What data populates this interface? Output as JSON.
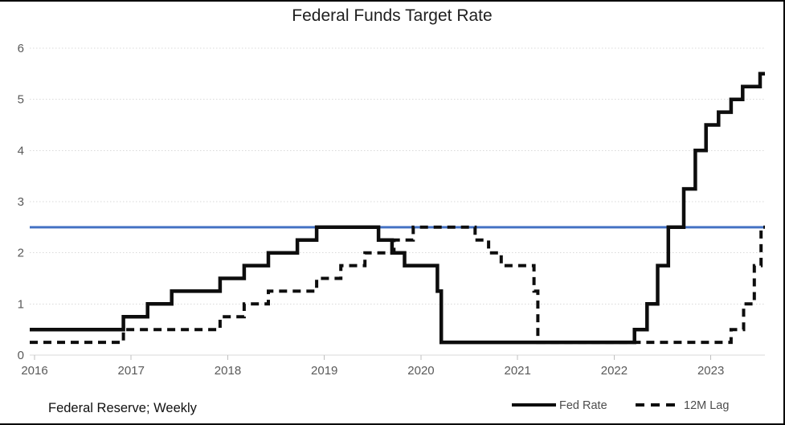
{
  "title": "Federal Funds Target Rate",
  "caption": "Federal Reserve; Weekly",
  "legend": [
    {
      "label": "Fed Rate",
      "style": "solid"
    },
    {
      "label": "12M Lag",
      "style": "dashed"
    }
  ],
  "colors": {
    "series_line": "#0d0d0d",
    "reference_line": "#4472C4",
    "gridline": "#d9d9d9",
    "axis_line": "#d9d9d9",
    "tick_mark": "#bfbfbf",
    "axis_text": "#595959",
    "title_text": "#1f1f1f"
  },
  "chart_data": {
    "type": "line",
    "title": "Federal Funds Target Rate",
    "xlabel": "",
    "ylabel": "",
    "x_tick_years": [
      2016,
      2017,
      2018,
      2019,
      2020,
      2021,
      2022,
      2023
    ],
    "x_tick_labels": [
      "2016",
      "2017",
      "2018",
      "2019",
      "2020",
      "2021",
      "2022",
      "2023"
    ],
    "y_ticks": [
      0,
      1,
      2,
      3,
      4,
      5,
      6
    ],
    "y_tick_labels": [
      "0",
      "1",
      "2",
      "3",
      "4",
      "5",
      "6"
    ],
    "ylim": [
      0,
      6
    ],
    "xlim_years": [
      2015.95,
      2023.56
    ],
    "grid": "horizontal-dotted",
    "legend_position": "bottom-right",
    "reference_line_y": 2.5,
    "series": [
      {
        "name": "Fed Rate",
        "style": "solid",
        "step_points_year_value": [
          [
            2015.95,
            0.5
          ],
          [
            2016.92,
            0.75
          ],
          [
            2017.17,
            1.0
          ],
          [
            2017.42,
            1.25
          ],
          [
            2017.92,
            1.5
          ],
          [
            2018.17,
            1.75
          ],
          [
            2018.42,
            2.0
          ],
          [
            2018.72,
            2.25
          ],
          [
            2018.92,
            2.5
          ],
          [
            2019.56,
            2.25
          ],
          [
            2019.7,
            2.0
          ],
          [
            2019.83,
            1.75
          ],
          [
            2020.17,
            1.25
          ],
          [
            2020.21,
            0.25
          ],
          [
            2022.21,
            0.5
          ],
          [
            2022.34,
            1.0
          ],
          [
            2022.45,
            1.75
          ],
          [
            2022.56,
            2.5
          ],
          [
            2022.72,
            3.25
          ],
          [
            2022.84,
            4.0
          ],
          [
            2022.95,
            4.5
          ],
          [
            2023.08,
            4.75
          ],
          [
            2023.21,
            5.0
          ],
          [
            2023.33,
            5.25
          ],
          [
            2023.51,
            5.5
          ]
        ]
      },
      {
        "name": "12M Lag",
        "style": "dashed",
        "step_points_year_value": [
          [
            2015.95,
            0.25
          ],
          [
            2016.92,
            0.5
          ],
          [
            2017.92,
            0.75
          ],
          [
            2018.17,
            1.0
          ],
          [
            2018.42,
            1.25
          ],
          [
            2018.92,
            1.5
          ],
          [
            2019.17,
            1.75
          ],
          [
            2019.42,
            2.0
          ],
          [
            2019.72,
            2.25
          ],
          [
            2019.92,
            2.5
          ],
          [
            2020.56,
            2.25
          ],
          [
            2020.7,
            2.0
          ],
          [
            2020.83,
            1.75
          ],
          [
            2021.17,
            1.25
          ],
          [
            2021.21,
            0.25
          ],
          [
            2023.21,
            0.5
          ],
          [
            2023.34,
            1.0
          ],
          [
            2023.45,
            1.75
          ],
          [
            2023.52,
            2.5
          ]
        ]
      }
    ]
  }
}
